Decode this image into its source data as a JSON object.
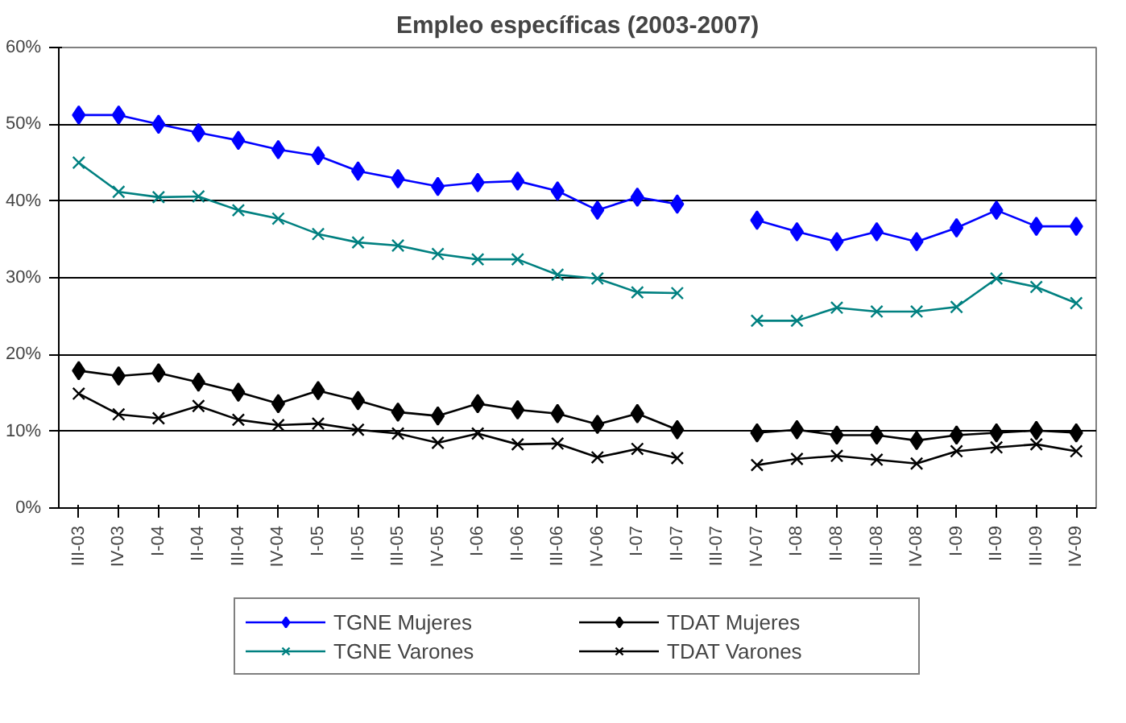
{
  "chart_data": {
    "type": "line",
    "title": "Empleo específicas (2003-2007)",
    "categories": [
      "III-03",
      "IV-03",
      "I-04",
      "II-04",
      "III-04",
      "IV-04",
      "I-05",
      "II-05",
      "III-05",
      "IV-05",
      "I-06",
      "II-06",
      "III-06",
      "IV-06",
      "I-07",
      "II-07",
      "III-07",
      "IV-07",
      "I-08",
      "II-08",
      "III-08",
      "IV-08",
      "I-09",
      "II-09",
      "III-09",
      "IV-09"
    ],
    "series": [
      {
        "name": "TGNE Mujeres",
        "color": "#0000ff",
        "marker": "diamond",
        "values": [
          51.2,
          51.2,
          50,
          48.9,
          47.9,
          46.7,
          45.9,
          43.9,
          42.9,
          41.9,
          42.4,
          42.6,
          41.3,
          38.8,
          40.5,
          39.6,
          null,
          37.5,
          36,
          34.7,
          36,
          34.7,
          36.5,
          38.8,
          36.7,
          36.7
        ]
      },
      {
        "name": "TGNE Varones",
        "color": "#008080",
        "marker": "cross",
        "values": [
          45,
          41.2,
          40.5,
          40.6,
          38.8,
          37.7,
          35.7,
          34.6,
          34.2,
          33.1,
          32.4,
          32.4,
          30.4,
          29.9,
          28.1,
          28,
          null,
          24.4,
          24.4,
          26.1,
          25.6,
          25.6,
          26.2,
          29.9,
          28.8,
          26.7
        ]
      },
      {
        "name": "TDAT Mujeres",
        "color": "#000000",
        "marker": "diamond",
        "values": [
          17.9,
          17.2,
          17.6,
          16.4,
          15.1,
          13.6,
          15.3,
          14,
          12.5,
          12,
          13.6,
          12.8,
          12.3,
          10.9,
          12.3,
          10.2,
          null,
          9.8,
          10.2,
          9.5,
          9.5,
          8.8,
          9.5,
          9.8,
          10.1,
          9.8
        ]
      },
      {
        "name": "TDAT Varones",
        "color": "#000000",
        "marker": "cross",
        "values": [
          14.9,
          12.2,
          11.7,
          13.3,
          11.5,
          10.8,
          11,
          10.2,
          9.7,
          8.5,
          9.7,
          8.3,
          8.4,
          6.6,
          7.7,
          6.5,
          null,
          5.6,
          6.4,
          6.8,
          6.3,
          5.8,
          7.4,
          7.9,
          8.3,
          7.4
        ]
      }
    ],
    "ylim": [
      0,
      60
    ],
    "yticks": [
      {
        "value": 0,
        "label": "0%"
      },
      {
        "value": 10,
        "label": "10%"
      },
      {
        "value": 20,
        "label": "20%"
      },
      {
        "value": 30,
        "label": "30%"
      },
      {
        "value": 40,
        "label": "40%"
      },
      {
        "value": 50,
        "label": "50%"
      },
      {
        "value": 60,
        "label": "60%"
      }
    ],
    "grid": "y",
    "legend": "bottom",
    "line_style": "solid"
  }
}
